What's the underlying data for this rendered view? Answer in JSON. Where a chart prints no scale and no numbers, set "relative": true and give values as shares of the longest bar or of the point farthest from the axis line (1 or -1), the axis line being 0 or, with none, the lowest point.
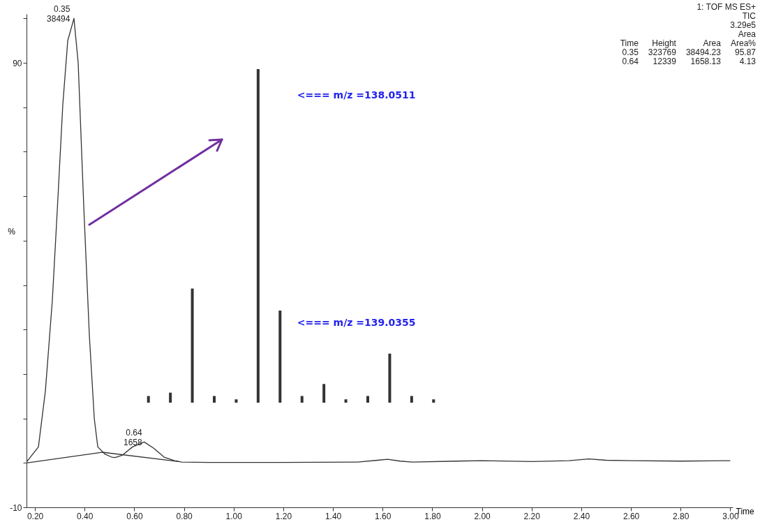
{
  "chart_data": [
    {
      "type": "line",
      "xlabel": "Time",
      "ylabel": "%",
      "xlim": [
        0.166,
        3.01
      ],
      "ylim": [
        -10,
        101
      ],
      "xticks": [
        {
          "value": 0.2,
          "label": "0.20"
        },
        {
          "value": 0.4,
          "label": "0.40"
        },
        {
          "value": 0.6,
          "label": "0.60"
        },
        {
          "value": 0.8,
          "label": "0.80"
        },
        {
          "value": 1.0,
          "label": "1.00"
        },
        {
          "value": 1.2,
          "label": "1.20"
        },
        {
          "value": 1.4,
          "label": "1.40"
        },
        {
          "value": 1.6,
          "label": "1.60"
        },
        {
          "value": 1.8,
          "label": "1.80"
        },
        {
          "value": 2.0,
          "label": "2.00"
        },
        {
          "value": 2.2,
          "label": "2.20"
        },
        {
          "value": 2.4,
          "label": "2.40"
        },
        {
          "value": 2.6,
          "label": "2.60"
        },
        {
          "value": 2.8,
          "label": "2.80"
        },
        {
          "value": 3.0,
          "label": "3.00"
        }
      ],
      "yticks": [
        -10,
        {
          "value": 0,
          "label": null
        },
        {
          "value": 10,
          "label": null
        },
        {
          "value": 20,
          "label": null
        },
        {
          "value": 30,
          "label": null
        },
        {
          "value": 40,
          "label": null
        },
        {
          "value": 50,
          "label": null
        },
        {
          "value": 60,
          "label": null
        },
        {
          "value": 70,
          "label": null
        },
        {
          "value": 80,
          "label": null
        },
        90,
        {
          "value": 100,
          "label": null
        }
      ],
      "series": [
        {
          "color": "#333333",
          "x": [
            0.166,
            0.214,
            0.242,
            0.27,
            0.29,
            0.312,
            0.332,
            0.357,
            0.374,
            0.397,
            0.419,
            0.439,
            0.453,
            0.481,
            0.509,
            0.523,
            0.551,
            0.593,
            0.64,
            0.678,
            0.72,
            0.762,
            0.79,
            0.9,
            1.2,
            1.5,
            1.58,
            1.62,
            1.67,
            1.72,
            1.9,
            2.0,
            2.2,
            2.35,
            2.43,
            2.5,
            2.6,
            2.8,
            3.0
          ],
          "values": [
            0.2,
            3.6,
            16.2,
            36.6,
            57,
            80.5,
            95,
            100,
            90,
            57,
            28.7,
            9.9,
            3.6,
            2.0,
            1.3,
            1.2,
            1.7,
            3.6,
            4.7,
            3.3,
            1.3,
            0.5,
            0.2,
            0.1,
            0.1,
            0.2,
            0.6,
            0.8,
            0.4,
            0.2,
            0.4,
            0.5,
            0.3,
            0.5,
            0.9,
            0.6,
            0.5,
            0.4,
            0.5
          ]
        },
        {
          "color": "#333333",
          "x": [
            0.166,
            0.47,
            0.78
          ],
          "values": [
            0,
            2.4,
            0.3
          ]
        }
      ],
      "annotations": [
        {
          "text": "0.35\n38494",
          "x": 0.35,
          "y": 100
        },
        {
          "text": "0.64\n1658",
          "x": 0.64,
          "y": 4.7
        },
        "1: TOF MS ES+",
        "TIC",
        "3.29e5",
        "\t\t\tArea",
        "Time\tHeight\tArea\tArea%",
        "0.35\t323769\t38494.23\t95.87",
        "0.64\t12339\t1658.13\t4.13"
      ]
    },
    {
      "type": "bar",
      "relative": true,
      "categories": [
        null,
        null,
        null,
        null,
        null,
        null,
        null,
        null,
        null,
        null,
        null,
        null,
        null,
        null
      ],
      "values": [
        0.02,
        0.03,
        0.342,
        0.02,
        0.01,
        1.0,
        0.276,
        0.02,
        0.056,
        0.01,
        0.02,
        0.147,
        0.02,
        0.01
      ],
      "color": "#333333",
      "annotations": [
        "<=== m/z =138.0511",
        "<=== m/z =139.0355"
      ]
    }
  ]
}
